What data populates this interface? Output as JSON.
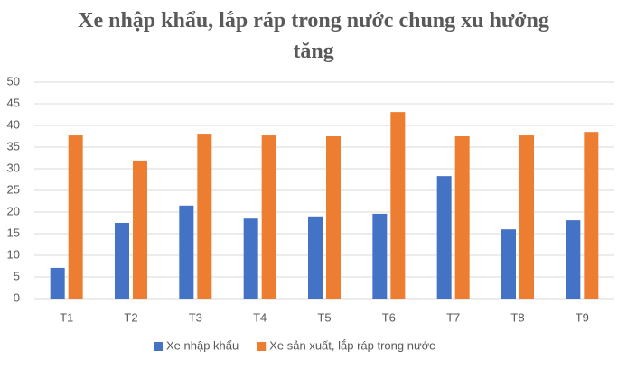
{
  "chart_data": {
    "type": "bar",
    "title": "Xe nhập khẩu, lắp ráp trong nước chung xu hướng tăng",
    "categories": [
      "T1",
      "T2",
      "T3",
      "T4",
      "T5",
      "T6",
      "T7",
      "T8",
      "T9"
    ],
    "series": [
      {
        "name": "Xe nhập khẩu",
        "color": "#4472c4",
        "values": [
          7.1,
          17.5,
          21.5,
          18.5,
          19,
          19.6,
          28.3,
          16,
          18.1
        ]
      },
      {
        "name": "Xe sản xuất, lắp ráp trong nước",
        "color": "#ed7d31",
        "values": [
          37.7,
          31.9,
          37.9,
          37.7,
          37.5,
          43.1,
          37.5,
          37.7,
          38.5
        ]
      }
    ],
    "ylim": [
      0,
      50
    ],
    "yticks": [
      0,
      5,
      10,
      15,
      20,
      25,
      30,
      35,
      40,
      45,
      50
    ],
    "grid": true,
    "legend": "bottom"
  }
}
